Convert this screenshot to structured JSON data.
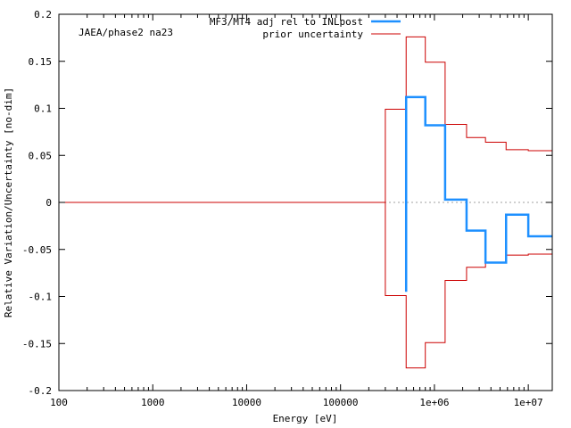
{
  "chart_data": {
    "type": "line",
    "title": "",
    "annotation": "JAEA/phase2 na23",
    "xlabel": "Energy [eV]",
    "ylabel": "Relative Variation/Uncertainty [no-dim]",
    "xscale": "log",
    "xlim": [
      100,
      18000000
    ],
    "ylim": [
      -0.2,
      0.2
    ],
    "x_ticks": [
      {
        "value": 100,
        "label": "100"
      },
      {
        "value": 1000,
        "label": "1000"
      },
      {
        "value": 10000,
        "label": "10000"
      },
      {
        "value": 100000,
        "label": "100000"
      },
      {
        "value": 1000000,
        "label": "1e+06"
      },
      {
        "value": 10000000,
        "label": "1e+07"
      }
    ],
    "y_ticks": [
      {
        "value": 0.2,
        "label": "0.2"
      },
      {
        "value": 0.15,
        "label": "0.15"
      },
      {
        "value": 0.1,
        "label": "0.1"
      },
      {
        "value": 0.05,
        "label": "0.05"
      },
      {
        "value": 0,
        "label": "0"
      },
      {
        "value": -0.05,
        "label": "-0.05"
      },
      {
        "value": -0.1,
        "label": "-0.1"
      },
      {
        "value": -0.15,
        "label": "-0.15"
      },
      {
        "value": -0.2,
        "label": "-0.2"
      }
    ],
    "legend_position": "top-center",
    "zero_line": "dotted",
    "series": [
      {
        "name": "MF3/MT4 adj rel to INLpost",
        "color": "#1e90ff",
        "style": "step",
        "x": [
          500000,
          500000,
          800000,
          800000,
          1300000,
          1300000,
          2200000,
          2200000,
          3500000,
          3500000,
          5800000,
          5800000,
          10000000,
          10000000,
          18000000
        ],
        "y": [
          -0.095,
          0.112,
          0.112,
          0.082,
          0.082,
          0.003,
          0.003,
          -0.03,
          -0.03,
          -0.064,
          -0.064,
          -0.013,
          -0.013,
          -0.036,
          -0.036
        ]
      },
      {
        "name": "prior uncertainty",
        "color": "#cc0000",
        "style": "step",
        "x": [
          100,
          300000,
          300000,
          500000,
          500000,
          800000,
          800000,
          1300000,
          1300000,
          2200000,
          2200000,
          3500000,
          3500000,
          5800000,
          5800000,
          10000000,
          10000000,
          18000000
        ],
        "y": [
          0,
          0,
          0.099,
          0.099,
          0.176,
          0.176,
          0.149,
          0.149,
          0.083,
          0.083,
          0.069,
          0.069,
          0.064,
          0.064,
          0.056,
          0.056,
          0.055,
          0.055
        ]
      },
      {
        "name": "",
        "color": "#cc0000",
        "style": "step",
        "x": [
          300000,
          300000,
          500000,
          500000,
          800000,
          800000,
          1300000,
          1300000,
          2200000,
          2200000,
          3500000,
          3500000,
          5800000,
          5800000,
          10000000,
          10000000,
          18000000
        ],
        "y": [
          0,
          -0.099,
          -0.099,
          -0.176,
          -0.176,
          -0.149,
          -0.149,
          -0.083,
          -0.083,
          -0.069,
          -0.069,
          -0.064,
          -0.064,
          -0.056,
          -0.056,
          -0.055,
          -0.055
        ]
      }
    ]
  }
}
